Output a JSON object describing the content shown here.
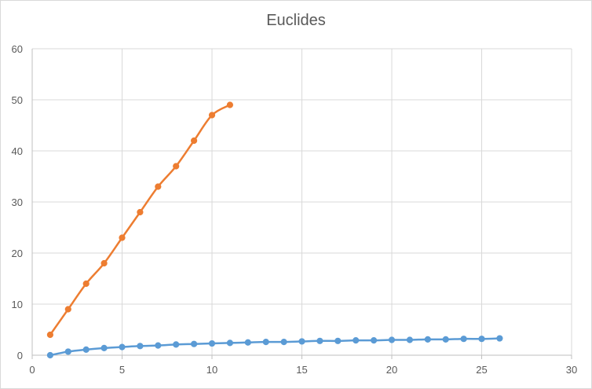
{
  "chart_data": {
    "type": "scatter",
    "style": "smooth lines with markers",
    "title": "Euclides",
    "xlabel": "",
    "ylabel": "",
    "xlim": [
      0,
      30
    ],
    "ylim": [
      0,
      60
    ],
    "xticks": [
      0,
      5,
      10,
      15,
      20,
      25,
      30
    ],
    "yticks": [
      0,
      10,
      20,
      30,
      40,
      50,
      60
    ],
    "grid": true,
    "legend": "none",
    "series": [
      {
        "color": "#5b9bd5",
        "x": [
          1,
          2,
          3,
          4,
          5,
          6,
          7,
          8,
          9,
          10,
          11,
          12,
          13,
          14,
          15,
          16,
          17,
          18,
          19,
          20,
          21,
          22,
          23,
          24,
          25,
          26
        ],
        "y": [
          0,
          0.7,
          1.1,
          1.4,
          1.6,
          1.8,
          1.9,
          2.1,
          2.2,
          2.3,
          2.4,
          2.5,
          2.6,
          2.6,
          2.7,
          2.8,
          2.8,
          2.9,
          2.9,
          3.0,
          3.0,
          3.1,
          3.1,
          3.2,
          3.2,
          3.3
        ]
      },
      {
        "color": "#ed7d31",
        "x": [
          1,
          2,
          3,
          4,
          5,
          6,
          7,
          8,
          9,
          10,
          11
        ],
        "y": [
          4,
          9,
          14,
          18,
          23,
          28,
          33,
          37,
          42,
          47,
          49
        ]
      }
    ]
  }
}
